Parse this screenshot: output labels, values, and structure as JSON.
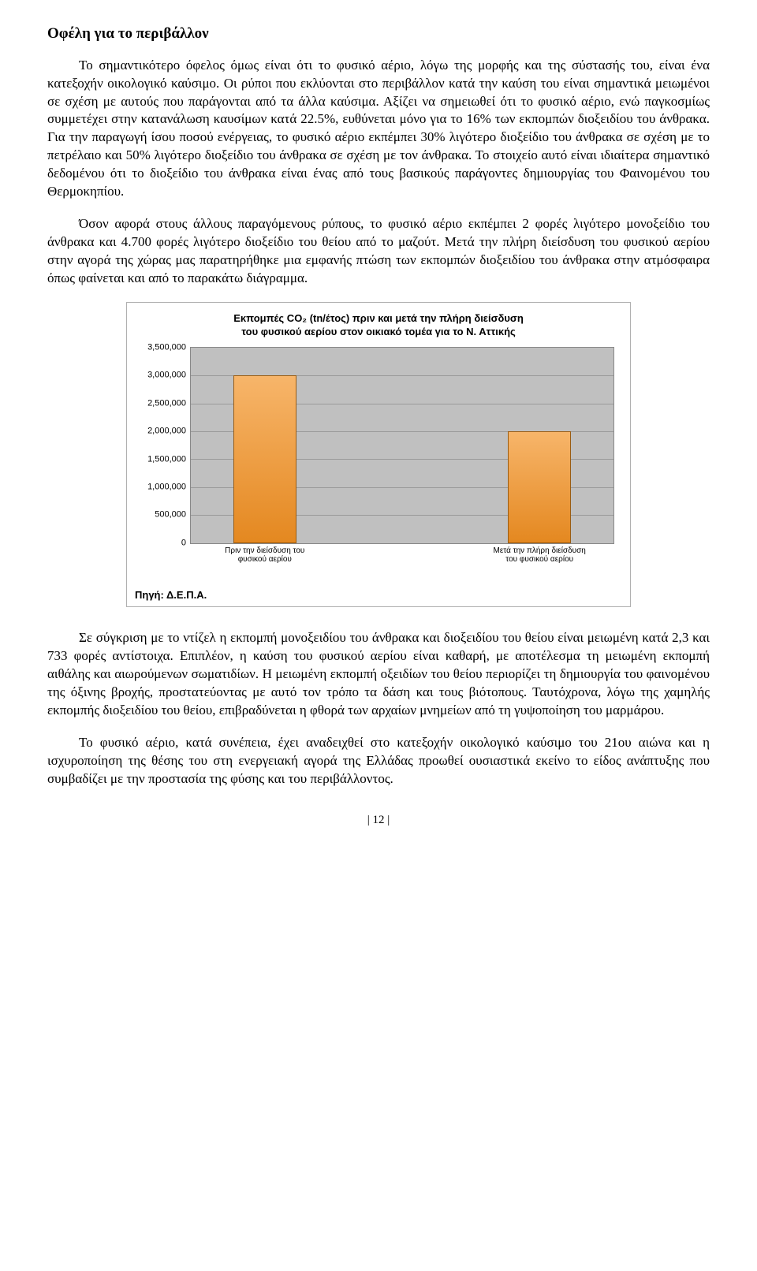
{
  "heading": "Οφέλη για το περιβάλλον",
  "para1": "Το σημαντικότερο όφελος όμως είναι ότι το φυσικό αέριο, λόγω της μορφής και της σύστασής του, είναι ένα κατεξοχήν οικολογικό καύσιμο. Οι ρύποι που εκλύονται στο περιβάλλον κατά την καύση του είναι σημαντικά μειωμένοι σε σχέση με αυτούς που παράγονται από τα άλλα καύσιμα. Αξίζει να σημειωθεί ότι το φυσικό αέριο, ενώ παγκοσμίως συμμετέχει στην κατανάλωση καυσίμων κατά 22.5%, ευθύνεται μόνο για το 16% των εκπομπών διοξειδίου του άνθρακα. Για την παραγωγή ίσου ποσού ενέργειας, το φυσικό αέριο εκπέμπει 30% λιγότερο διοξείδιο του άνθρακα σε σχέση με το πετρέλαιο και 50% λιγότερο διοξείδιο του άνθρακα σε σχέση με τον άνθρακα. Το στοιχείο αυτό είναι ιδιαίτερα σημαντικό δεδομένου ότι το διοξείδιο του άνθρακα είναι ένας από τους βασικούς παράγοντες δημιουργίας του Φαινομένου του Θερμοκηπίου.",
  "para2": "Όσον αφορά στους άλλους παραγόμενους ρύπους, το φυσικό αέριο εκπέμπει 2 φορές λιγότερο μονοξείδιο του άνθρακα και 4.700 φορές λιγότερο διοξείδιο του θείου από το μαζούτ. Μετά την πλήρη διείσδυση του φυσικού αερίου στην αγορά της χώρας μας παρατηρήθηκε μια εμφανής πτώση των εκπομπών διοξειδίου του άνθρακα στην ατμόσφαιρα όπως φαίνεται και από το παρακάτω διάγραμμα.",
  "para3": "Σε σύγκριση με το ντίζελ η εκπομπή μονοξειδίου του άνθρακα και διοξειδίου του θείου είναι μειωμένη κατά 2,3 και 733 φορές αντίστοιχα. Επιπλέον, η καύση του φυσικού αερίου είναι καθαρή, με αποτέλεσμα τη μειωμένη εκπομπή αιθάλης και αιωρούμενων σωματιδίων. Η μειωμένη εκπομπή οξειδίων του θείου περιορίζει τη δημιουργία του φαινομένου της όξινης βροχής, προστατεύοντας με αυτό τον τρόπο τα δάση και τους βιότοπους. Ταυτόχρονα, λόγω της χαμηλής εκπομπής διοξειδίου του θείου, επιβραδύνεται η φθορά των αρχαίων μνημείων από τη γυψοποίηση του μαρμάρου.",
  "para4": "Το φυσικό αέριο, κατά συνέπεια, έχει αναδειχθεί στο κατεξοχήν οικολογικό καύσιμο του 21ου αιώνα και η ισχυροποίηση της θέσης του στη ενεργειακή αγορά της Ελλάδας προωθεί ουσιαστικά εκείνο το είδος ανάπτυξης που συμβαδίζει με την προστασία της φύσης και του περιβάλλοντος.",
  "chart": {
    "type": "bar",
    "title_line1": "Εκπομπές CO₂ (tn/έτος) πριν και μετά την πλήρη διείσδυση",
    "title_line2": "του φυσικού αερίου στον οικιακό τομέα για το Ν. Αττικής",
    "categories": [
      "Πριν την διείσδυση του φυσικού αερίου",
      "Μετά την πλήρη διείσδυση του φυσικού αερίου"
    ],
    "values": [
      3000000,
      2000000
    ],
    "ylim": [
      0,
      3500000
    ],
    "ytick_step": 500000,
    "ytick_labels": [
      "0",
      "500,000",
      "1,000,000",
      "1,500,000",
      "2,000,000",
      "2,500,000",
      "3,000,000",
      "3,500,000"
    ],
    "bar_positions_pct": [
      10,
      75
    ],
    "bar_width_pct": 15,
    "background_color": "#c0c0c0",
    "grid_color": "#9a9a9a",
    "bar_fill_top": "#f7b56a",
    "bar_fill_bottom": "#e48820",
    "bar_border": "#9a5c12",
    "source": "Πηγή: Δ.Ε.Π.Α.",
    "title_fontsize": 13,
    "axis_fontsize": 11
  },
  "page_number": "| 12 |"
}
